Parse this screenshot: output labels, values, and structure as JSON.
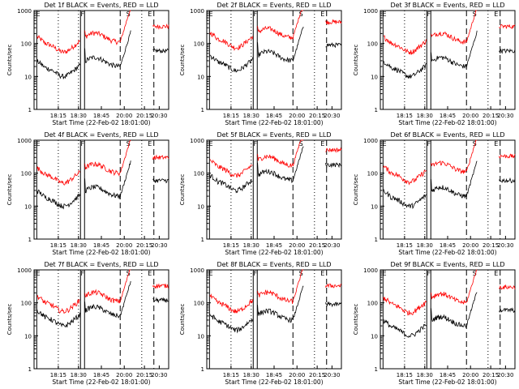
{
  "colors": {
    "events": "#000000",
    "lld": "#ff0000",
    "axis": "#000000",
    "background": "#ffffff"
  },
  "common": {
    "ylabel": "Counts/sec",
    "xlabel": "Start Time (22-Feb-02 18:01:00)",
    "x_ticks": [
      "18:15",
      "18:30",
      "18:45",
      "20:00",
      "20:15",
      "20:30"
    ],
    "y_ticks": [
      "1",
      "10",
      "100",
      "1000"
    ],
    "ylim": [
      1,
      1000
    ],
    "y_scale": "log",
    "markers": [
      "E",
      "F",
      "S",
      "E"
    ]
  },
  "chart_data": [
    {
      "type": "line",
      "title": "Det 1f BLACK = Events, RED = LLD",
      "events_level": 20,
      "lld_level": 110
    },
    {
      "type": "line",
      "title": "Det 2f BLACK = Events, RED = LLD",
      "events_level": 30,
      "lld_level": 150
    },
    {
      "type": "line",
      "title": "Det 3f BLACK = Events, RED = LLD",
      "events_level": 20,
      "lld_level": 110
    },
    {
      "type": "line",
      "title": "Det 4f BLACK = Events, RED = LLD",
      "events_level": 20,
      "lld_level": 100
    },
    {
      "type": "line",
      "title": "Det 5f BLACK = Events, RED = LLD",
      "events_level": 60,
      "lld_level": 170
    },
    {
      "type": "line",
      "title": "Det 6f BLACK = Events, RED = LLD",
      "events_level": 20,
      "lld_level": 110
    },
    {
      "type": "line",
      "title": "Det 7f BLACK = Events, RED = LLD",
      "events_level": 40,
      "lld_level": 110
    },
    {
      "type": "line",
      "title": "Det 8f BLACK = Events, RED = LLD",
      "events_level": 30,
      "lld_level": 110
    },
    {
      "type": "line",
      "title": "Det 9f BLACK = Events, RED = LLD",
      "events_level": 20,
      "lld_level": 100
    }
  ]
}
